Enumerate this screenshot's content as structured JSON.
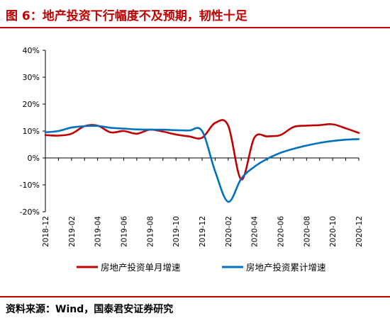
{
  "header": {
    "title": "图 6：地产投资下行幅度不及预期，韧性十足"
  },
  "footer": {
    "source": "资料来源：Wind，国泰君安证券研究"
  },
  "chart_data": {
    "type": "line",
    "ylim": [
      -20,
      40
    ],
    "yticks": [
      -20,
      -10,
      0,
      10,
      20,
      30,
      40
    ],
    "ytick_labels": [
      "-20%",
      "-10%",
      "0%",
      "10%",
      "20%",
      "30%",
      "40%"
    ],
    "x": [
      "2018-12",
      "2019-01",
      "2019-02",
      "2019-03",
      "2019-04",
      "2019-05",
      "2019-06",
      "2019-07",
      "2019-08",
      "2019-09",
      "2019-10",
      "2019-11",
      "2019-12",
      "2020-01",
      "2020-02",
      "2020-03",
      "2020-04",
      "2020-05",
      "2020-06",
      "2020-07",
      "2020-08",
      "2020-09",
      "2020-10",
      "2020-11",
      "2020-12"
    ],
    "xtick_labels": [
      "2018-12",
      "2019-02",
      "2019-04",
      "2019-06",
      "2019-08",
      "2019-10",
      "2019-12",
      "2020-02",
      "2020-04",
      "2020-06",
      "2020-08",
      "2020-10",
      "2020-12"
    ],
    "legend_position": "bottom",
    "series": [
      {
        "name": "房地产投资单月增速",
        "color": "#c00000",
        "values": [
          8.5,
          8.3,
          9.0,
          11.8,
          12.0,
          9.5,
          10.0,
          9.0,
          10.5,
          9.8,
          8.7,
          8.0,
          7.5,
          13.0,
          12.0,
          -8.0,
          7.5,
          8.0,
          8.5,
          11.5,
          12.0,
          12.2,
          12.5,
          11.0,
          9.3
        ]
      },
      {
        "name": "房地产投资累计增速",
        "color": "#0070c0",
        "values": [
          9.5,
          10.0,
          11.3,
          11.8,
          11.9,
          11.2,
          10.9,
          10.6,
          10.5,
          10.5,
          10.3,
          10.2,
          10.0,
          -5.0,
          -16.3,
          -7.7,
          -3.3,
          -0.3,
          1.9,
          3.4,
          4.6,
          5.6,
          6.3,
          6.8,
          7.0
        ]
      }
    ]
  }
}
